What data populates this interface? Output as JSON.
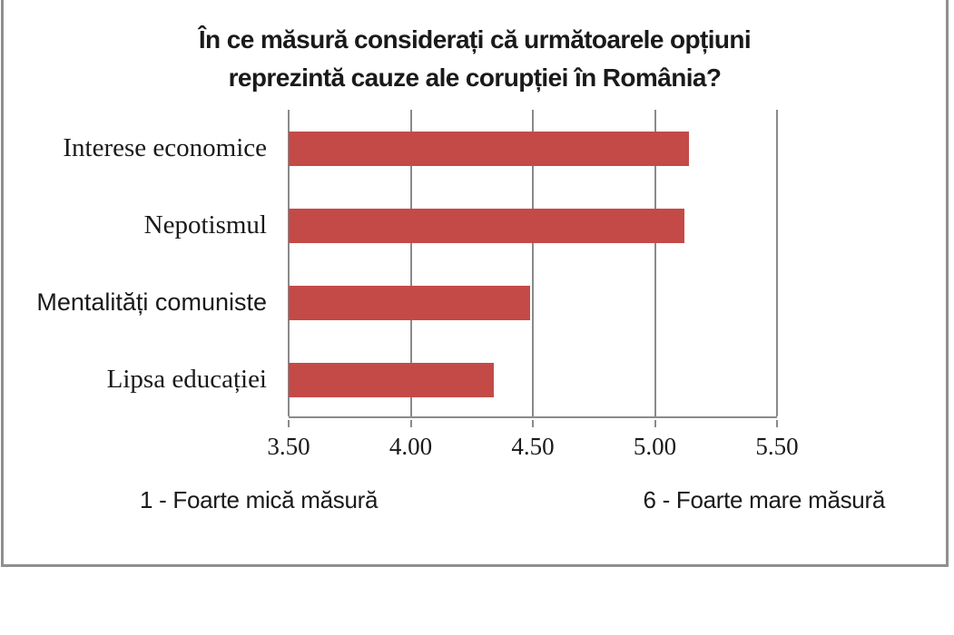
{
  "chart_data": {
    "type": "bar",
    "orientation": "horizontal",
    "title": "În ce măsură considerați că următoarele opțiuni reprezintă cauze ale corupției în România?",
    "title_lines": [
      "În ce măsură considerați că următoarele opțiuni",
      "reprezintă cauze ale corupției în România?"
    ],
    "categories": [
      "Interese economice",
      "Nepotismul",
      "Mentalități comuniste",
      "Lipsa educației"
    ],
    "values": [
      5.14,
      5.12,
      4.49,
      4.34
    ],
    "xlim": [
      3.5,
      5.5
    ],
    "x_ticks": [
      "3.50",
      "4.00",
      "4.50",
      "5.00",
      "5.50"
    ],
    "grid": true,
    "legend_position": "bottom",
    "scale_note_left": "1 - Foarte mică măsură",
    "scale_note_right": "6 - Foarte mare măsură",
    "colors": {
      "bar": "#c44a47",
      "gridline": "#8a8a8a",
      "frame_border": "#8f8f8f",
      "text": "#1a1a1a"
    }
  }
}
